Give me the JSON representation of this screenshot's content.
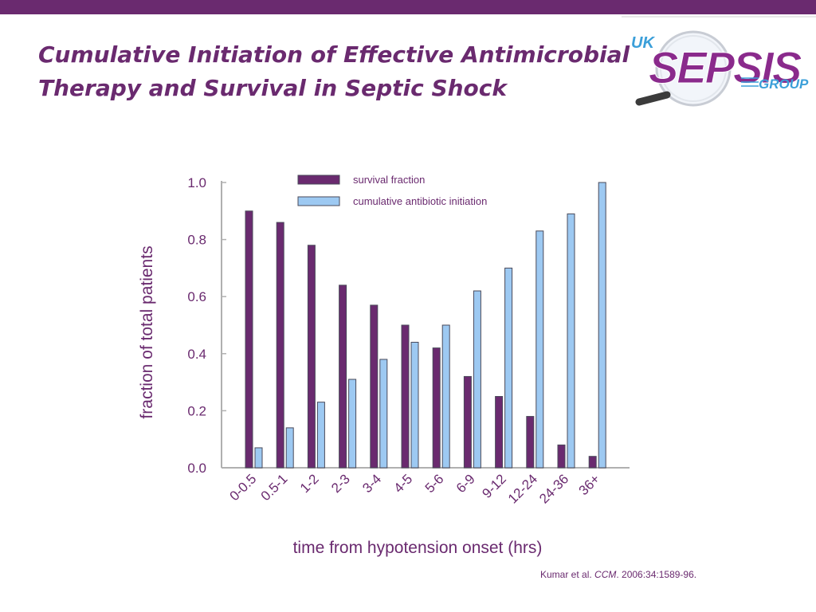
{
  "slide": {
    "title_line1": "Cumulative Initiation of Effective Antimicrobial",
    "title_line2": "Therapy and Survival in Septic Shock",
    "logo": {
      "prefix": "UK",
      "word": "SEPSIS",
      "suffix": "GROUP",
      "icon": "magnifying-glass-icon"
    },
    "citation": {
      "authors": "Kumar et al. ",
      "journal": "CCM",
      "details": ". 2006:34:1589-96."
    },
    "colors": {
      "accent": "#6a2a6f",
      "survival": "#6a2a6f",
      "initiation": "#9dc9f2",
      "logo_blue": "#3b9fd9"
    }
  },
  "chart_data": {
    "type": "bar",
    "title": "",
    "xlabel": "time from hypotension onset (hrs)",
    "ylabel": "fraction of total patients",
    "ylim": [
      0,
      1.0
    ],
    "yticks": [
      "0.0",
      "0.2",
      "0.4",
      "0.6",
      "0.8",
      "1.0"
    ],
    "categories": [
      "0-0.5",
      "0.5-1",
      "1-2",
      "2-3",
      "3-4",
      "4-5",
      "5-6",
      "6-9",
      "9-12",
      "12-24",
      "24-36",
      "36+"
    ],
    "series": [
      {
        "name": "survival fraction",
        "color": "#6a2a6f",
        "values": [
          0.9,
          0.86,
          0.78,
          0.64,
          0.57,
          0.5,
          0.42,
          0.32,
          0.25,
          0.18,
          0.08,
          0.04
        ]
      },
      {
        "name": "cumulative antibiotic initiation",
        "color": "#9dc9f2",
        "values": [
          0.07,
          0.14,
          0.23,
          0.31,
          0.38,
          0.44,
          0.5,
          0.62,
          0.7,
          0.83,
          0.89,
          1.0
        ]
      }
    ],
    "legend_position": "top"
  }
}
